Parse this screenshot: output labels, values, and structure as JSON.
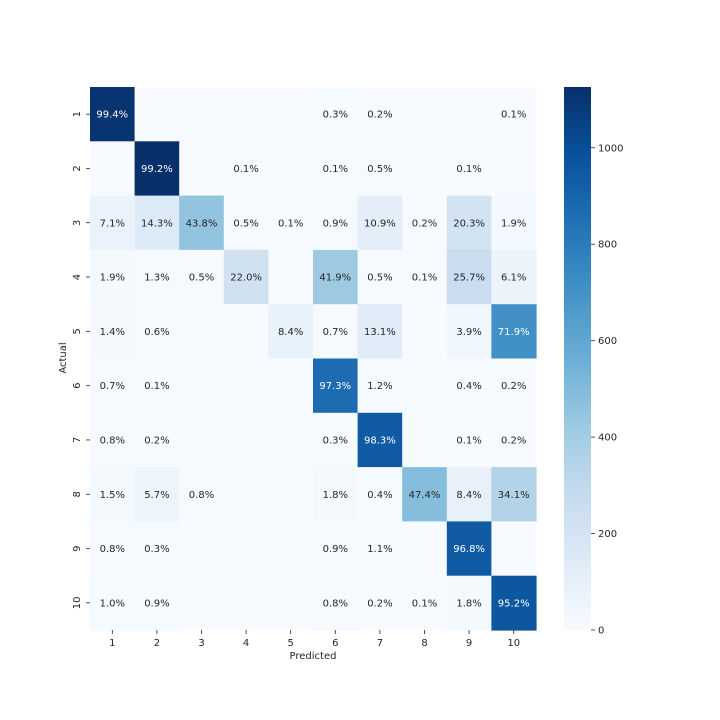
{
  "chart_data": {
    "type": "heatmap",
    "title": "",
    "xlabel": "Predicted",
    "ylabel": "Actual",
    "x_categories": [
      "1",
      "2",
      "3",
      "4",
      "5",
      "6",
      "7",
      "8",
      "9",
      "10"
    ],
    "y_categories": [
      "1",
      "2",
      "3",
      "4",
      "5",
      "6",
      "7",
      "8",
      "9",
      "10"
    ],
    "values": [
      [
        1110,
        0,
        0,
        0,
        0,
        3,
        2,
        0,
        0,
        1
      ],
      [
        0,
        1126,
        0,
        1,
        0,
        1,
        6,
        0,
        1,
        0
      ],
      [
        73,
        148,
        452,
        5,
        1,
        9,
        112,
        2,
        209,
        20
      ],
      [
        19,
        13,
        5,
        222,
        0,
        423,
        5,
        1,
        260,
        62
      ],
      [
        14,
        6,
        0,
        0,
        82,
        7,
        129,
        0,
        38,
        706
      ],
      [
        6,
        1,
        0,
        0,
        0,
        868,
        11,
        0,
        4,
        2
      ],
      [
        8,
        2,
        0,
        0,
        0,
        3,
        942,
        0,
        1,
        2
      ],
      [
        15,
        59,
        8,
        0,
        0,
        19,
        4,
        487,
        86,
        350
      ],
      [
        8,
        3,
        0,
        0,
        0,
        9,
        11,
        0,
        943,
        0
      ],
      [
        10,
        9,
        0,
        0,
        0,
        8,
        2,
        1,
        18,
        961
      ]
    ],
    "labels": [
      [
        "99.4%",
        "",
        "",
        "",
        "",
        "0.3%",
        "0.2%",
        "",
        "",
        "0.1%"
      ],
      [
        "",
        "99.2%",
        "",
        "0.1%",
        "",
        "0.1%",
        "0.5%",
        "",
        "0.1%",
        ""
      ],
      [
        "7.1%",
        "14.3%",
        "43.8%",
        "0.5%",
        "0.1%",
        "0.9%",
        "10.9%",
        "0.2%",
        "20.3%",
        "1.9%"
      ],
      [
        "1.9%",
        "1.3%",
        "0.5%",
        "22.0%",
        "",
        "41.9%",
        "0.5%",
        "0.1%",
        "25.7%",
        "6.1%"
      ],
      [
        "1.4%",
        "0.6%",
        "",
        "",
        "8.4%",
        "0.7%",
        "13.1%",
        "",
        "3.9%",
        "71.9%"
      ],
      [
        "0.7%",
        "0.1%",
        "",
        "",
        "",
        "97.3%",
        "1.2%",
        "",
        "0.4%",
        "0.2%"
      ],
      [
        "0.8%",
        "0.2%",
        "",
        "",
        "",
        "0.3%",
        "98.3%",
        "",
        "0.1%",
        "0.2%"
      ],
      [
        "1.5%",
        "5.7%",
        "0.8%",
        "",
        "",
        "1.8%",
        "0.4%",
        "47.4%",
        "8.4%",
        "34.1%"
      ],
      [
        "0.8%",
        "0.3%",
        "",
        "",
        "",
        "0.9%",
        "1.1%",
        "",
        "96.8%",
        ""
      ],
      [
        "1.0%",
        "0.9%",
        "",
        "",
        "",
        "0.8%",
        "0.2%",
        "0.1%",
        "1.8%",
        "95.2%"
      ]
    ],
    "colorbar": {
      "colormap": "Blues",
      "min": 0,
      "max": 1126,
      "ticks": [
        0,
        200,
        400,
        600,
        800,
        1000
      ]
    },
    "grid": false,
    "legend": "colorbar-right"
  }
}
